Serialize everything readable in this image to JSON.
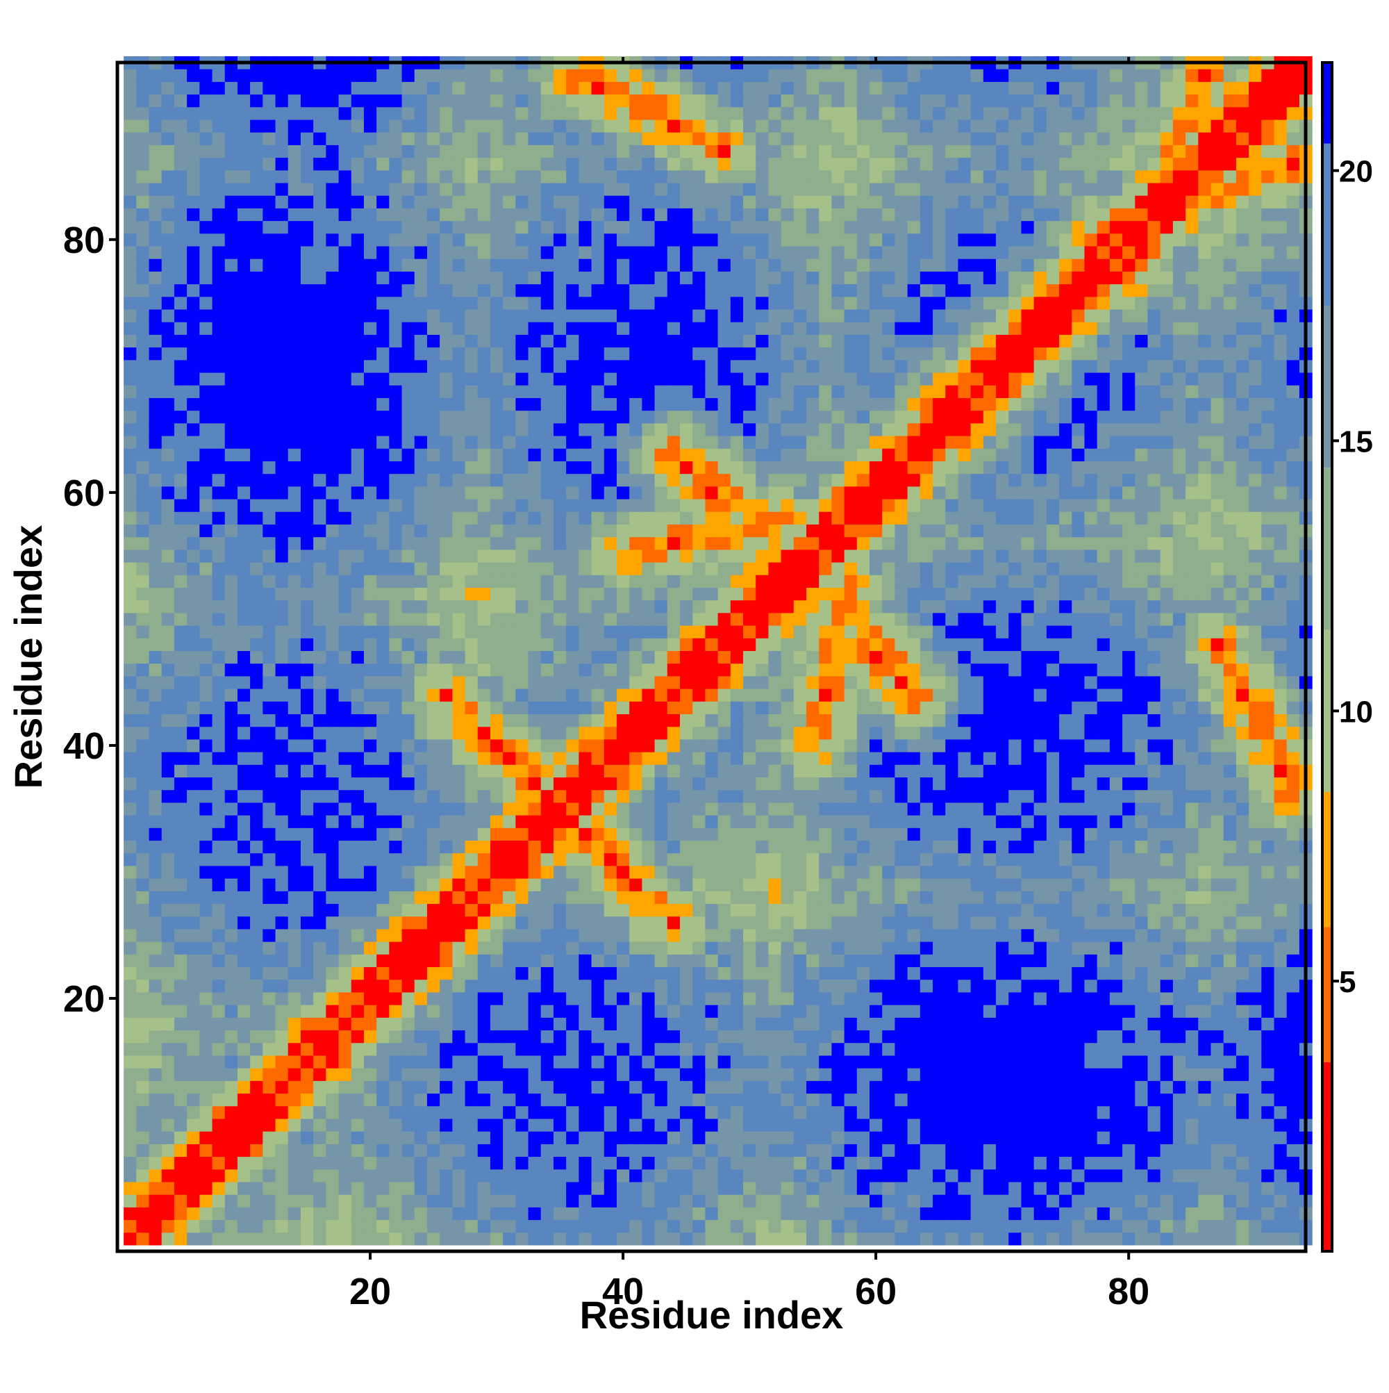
{
  "chart_data": {
    "type": "heatmap",
    "title": "",
    "xlabel": "Residue index",
    "ylabel": "Residue index",
    "n_residues": 94,
    "xlim": [
      1,
      94
    ],
    "ylim": [
      1,
      94
    ],
    "x_ticks": [
      20,
      40,
      60,
      80
    ],
    "y_ticks": [
      20,
      40,
      60,
      80
    ],
    "x_tick_labels": [
      "20",
      "40",
      "60",
      "80"
    ],
    "y_tick_labels": [
      "20",
      "40",
      "60",
      "80"
    ],
    "colorbar": {
      "range": [
        0,
        22
      ],
      "ticks": [
        5,
        10,
        15,
        20
      ],
      "tick_labels": [
        "5",
        "10",
        "15",
        "20"
      ],
      "colors": [
        {
          "max": 3.5,
          "color": "#ff0000"
        },
        {
          "max": 6.0,
          "color": "#ff6a00"
        },
        {
          "max": 8.5,
          "color": "#ffa500"
        },
        {
          "max": 11.5,
          "color": "#a6c08a"
        },
        {
          "max": 14.5,
          "color": "#8fae8e"
        },
        {
          "max": 17.5,
          "color": "#7596a8"
        },
        {
          "max": 20.5,
          "color": "#5a86c0"
        },
        {
          "max": 99,
          "color": "#0000ff"
        }
      ]
    },
    "matrix_description": "symmetric residue-residue distance map; main diagonal near 0, secondary structure contacts as orange/red stripes; distances above ~20 shown in blue",
    "contact_stripes": [
      {
        "from": [
          27,
          43
        ],
        "to": [
          33,
          37
        ]
      },
      {
        "from": [
          33,
          37
        ],
        "to": [
          44,
          26
        ]
      },
      {
        "from": [
          36,
          93
        ],
        "to": [
          46,
          88
        ]
      },
      {
        "from": [
          87,
          48
        ],
        "to": [
          93,
          38
        ]
      },
      {
        "from": [
          77,
          80
        ],
        "to": [
          93,
          86
        ]
      },
      {
        "from": [
          59,
          48
        ],
        "to": [
          62,
          45
        ]
      },
      {
        "from": [
          40,
          55
        ],
        "to": [
          52,
          58
        ]
      },
      {
        "from": [
          44,
          63
        ],
        "to": [
          48,
          60
        ]
      }
    ]
  }
}
